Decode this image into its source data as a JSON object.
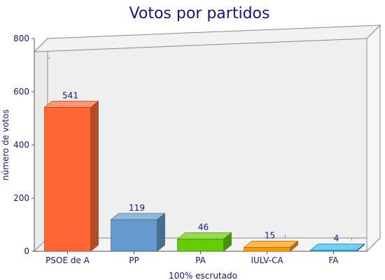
{
  "chart_data": {
    "type": "bar",
    "title": "Votos por partidos",
    "xlabel": "100% escrutado",
    "ylabel": "número de votos",
    "ylim": [
      0,
      800
    ],
    "yticks": [
      "0",
      "200",
      "400",
      "600",
      "800"
    ],
    "categories": [
      "PSOE de A",
      "PP",
      "PA",
      "IULV-CA",
      "FA"
    ],
    "values": [
      541,
      119,
      46,
      15,
      4
    ],
    "value_labels": [
      "541",
      "119",
      "46",
      "15",
      "4"
    ],
    "bar_colors": [
      "#ff6633",
      "#6699cc",
      "#66cc00",
      "#ff9900",
      "#33bbee"
    ],
    "grid": false,
    "legend": "none"
  }
}
